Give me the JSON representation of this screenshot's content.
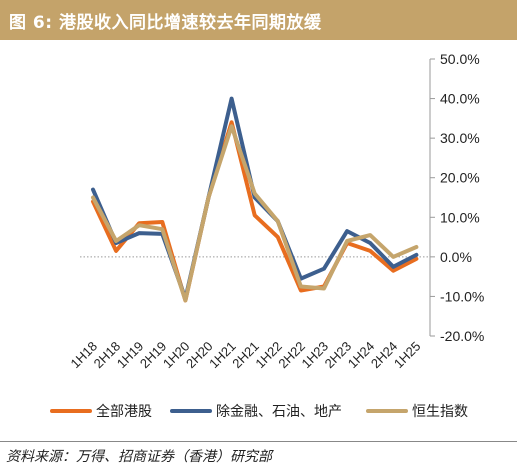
{
  "header": {
    "title": "图 6:  港股收入同比增速较去年同期放缓"
  },
  "footer": {
    "source": "资料来源：万得、招商证券（香港）研究部"
  },
  "colors": {
    "header_bg": "#c4a36a",
    "series": [
      "#e86d1f",
      "#3d5f8e",
      "#c5a56c"
    ]
  },
  "chart_data": {
    "type": "line",
    "categories": [
      "1H18",
      "2H18",
      "1H19",
      "2H19",
      "1H20",
      "2H20",
      "1H21",
      "2H21",
      "1H22",
      "2H22",
      "1H23",
      "2H23",
      "1H24",
      "2H24",
      "1H25"
    ],
    "series": [
      {
        "name": "全部港股",
        "values": [
          14.0,
          1.5,
          8.5,
          8.8,
          -11.0,
          15.0,
          34.0,
          10.5,
          5.0,
          -8.5,
          -7.5,
          3.5,
          1.5,
          -3.5,
          -0.5
        ]
      },
      {
        "name": "除金融、石油、地产",
        "values": [
          17.0,
          3.5,
          6.0,
          5.8,
          -10.5,
          15.0,
          40.0,
          15.0,
          9.0,
          -5.5,
          -3.0,
          6.5,
          3.5,
          -2.5,
          0.5
        ]
      },
      {
        "name": "恒生指数",
        "values": [
          15.0,
          4.0,
          8.0,
          7.0,
          -11.0,
          15.0,
          33.0,
          16.0,
          9.0,
          -7.5,
          -8.0,
          4.0,
          5.5,
          0.0,
          2.5
        ]
      }
    ],
    "ylim": [
      -20,
      50
    ],
    "yticks": [
      -20,
      -10,
      0,
      10,
      20,
      30,
      40,
      50
    ],
    "ytick_labels": [
      "-20.0%",
      "-10.0%",
      "0.0%",
      "10.0%",
      "20.0%",
      "30.0%",
      "40.0%",
      "50.0%"
    ],
    "y_axis_position": "right",
    "grid": false,
    "legend_position": "bottom"
  }
}
